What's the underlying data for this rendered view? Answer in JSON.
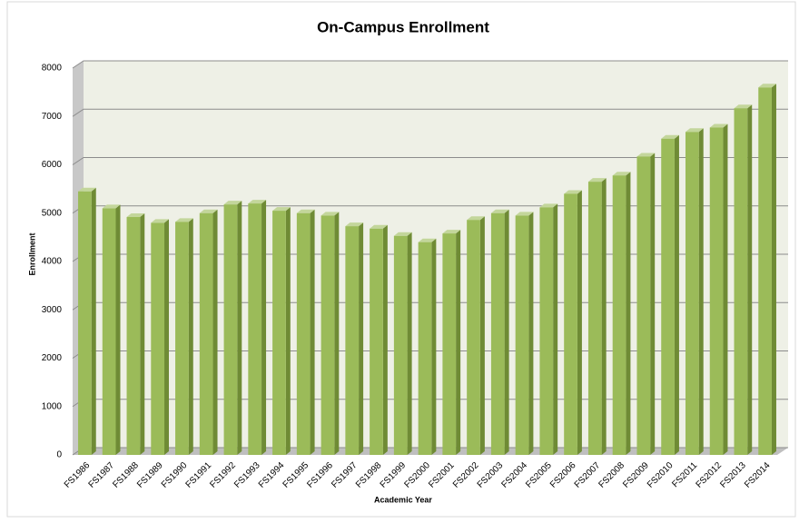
{
  "chart_data": {
    "type": "bar",
    "title": "On-Campus Enrollment",
    "x_label": "Academic Year",
    "y_label": "Enrollment",
    "categories": [
      "FS1986",
      "FS1987",
      "FS1988",
      "FS1989",
      "FS1990",
      "FS1991",
      "FS1992",
      "FS1993",
      "FS1994",
      "FS1995",
      "FS1996",
      "FS1997",
      "FS1998",
      "FS1999",
      "FS2000",
      "FS2001",
      "FS2002",
      "FS2003",
      "FS2004",
      "FS2005",
      "FS2006",
      "FS2007",
      "FS2008",
      "FS2009",
      "FS2010",
      "FS2011",
      "FS2012",
      "FS2013",
      "FS2014"
    ],
    "values": [
      5450,
      5100,
      4920,
      4800,
      4820,
      5000,
      5180,
      5200,
      5050,
      5000,
      4950,
      4730,
      4680,
      4530,
      4400,
      4580,
      4860,
      5000,
      4950,
      5120,
      5400,
      5650,
      5780,
      6170,
      6540,
      6680,
      6770,
      7170,
      7600
    ],
    "color": "#9bbb59",
    "ylim": [
      0,
      8000
    ],
    "yticks": [
      0,
      1000,
      2000,
      3000,
      4000,
      5000,
      6000,
      7000,
      8000
    ],
    "grid": true
  }
}
